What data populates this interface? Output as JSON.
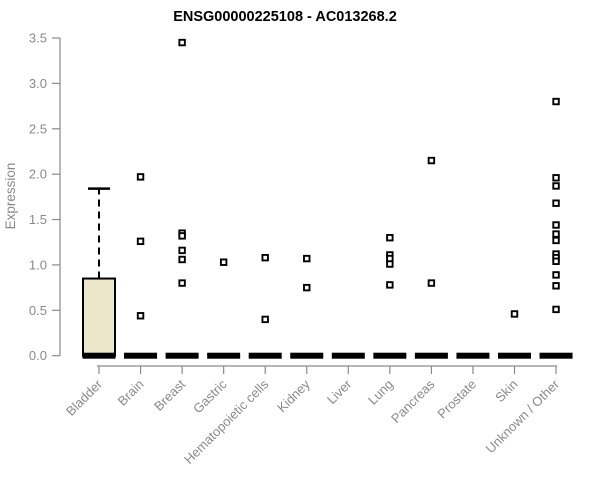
{
  "chart_data": {
    "type": "boxplot",
    "title": "ENSG00000225108 - AC013268.2",
    "xlabel": "",
    "ylabel": "Expression",
    "ylim": [
      0,
      3.5
    ],
    "grid": false,
    "legend": "none",
    "y_ticks": [
      "0.0",
      "0.5",
      "1.0",
      "1.5",
      "2.0",
      "2.5",
      "3.0",
      "3.5"
    ],
    "categories": [
      "Bladder",
      "Brain",
      "Breast",
      "Gastric",
      "Hematopoietic cells",
      "Kidney",
      "Liver",
      "Lung",
      "Pancreas",
      "Prostate",
      "Skin",
      "Unknown / Other"
    ],
    "series": [
      {
        "category": "Bladder",
        "q1": 0,
        "median": 0,
        "q3": 0.85,
        "whisker_low": 0,
        "whisker_high": 1.84,
        "points": []
      },
      {
        "category": "Brain",
        "q1": 0,
        "median": 0,
        "q3": 0,
        "whisker_low": 0,
        "whisker_high": 0,
        "points": [
          1.97,
          1.26,
          0.44
        ]
      },
      {
        "category": "Breast",
        "q1": 0,
        "median": 0,
        "q3": 0,
        "whisker_low": 0,
        "whisker_high": 0,
        "points": [
          3.45,
          1.35,
          1.32,
          1.16,
          1.06,
          0.8
        ]
      },
      {
        "category": "Gastric",
        "q1": 0,
        "median": 0,
        "q3": 0,
        "whisker_low": 0,
        "whisker_high": 0,
        "points": [
          1.03
        ]
      },
      {
        "category": "Hematopoietic cells",
        "q1": 0,
        "median": 0,
        "q3": 0,
        "whisker_low": 0,
        "whisker_high": 0,
        "points": [
          1.08,
          0.4
        ]
      },
      {
        "category": "Kidney",
        "q1": 0,
        "median": 0,
        "q3": 0,
        "whisker_low": 0,
        "whisker_high": 0,
        "points": [
          1.07,
          0.75
        ]
      },
      {
        "category": "Liver",
        "q1": 0,
        "median": 0,
        "q3": 0,
        "whisker_low": 0,
        "whisker_high": 0,
        "points": []
      },
      {
        "category": "Lung",
        "q1": 0,
        "median": 0,
        "q3": 0,
        "whisker_low": 0,
        "whisker_high": 0,
        "points": [
          1.3,
          1.11,
          1.07,
          1.01,
          0.78
        ]
      },
      {
        "category": "Pancreas",
        "q1": 0,
        "median": 0,
        "q3": 0,
        "whisker_low": 0,
        "whisker_high": 0,
        "points": [
          2.15,
          0.8
        ]
      },
      {
        "category": "Prostate",
        "q1": 0,
        "median": 0,
        "q3": 0,
        "whisker_low": 0,
        "whisker_high": 0,
        "points": []
      },
      {
        "category": "Skin",
        "q1": 0,
        "median": 0,
        "q3": 0,
        "whisker_low": 0,
        "whisker_high": 0,
        "points": [
          0.46
        ]
      },
      {
        "category": "Unknown / Other",
        "q1": 0,
        "median": 0,
        "q3": 0,
        "whisker_low": 0,
        "whisker_high": 0,
        "points": [
          2.8,
          1.96,
          1.87,
          1.68,
          1.44,
          1.34,
          1.27,
          1.12,
          1.08,
          1.04,
          0.89,
          0.77,
          0.51
        ]
      }
    ],
    "colors": {
      "box_fill": "#ece7cb",
      "box_border": "#000000",
      "median": "#000000",
      "point_stroke": "#000000",
      "point_fill": "#ffffff",
      "axis": "#8a8a8a",
      "tick_label": "#8a8a8a",
      "title": "#000000",
      "background": "#ffffff"
    }
  }
}
